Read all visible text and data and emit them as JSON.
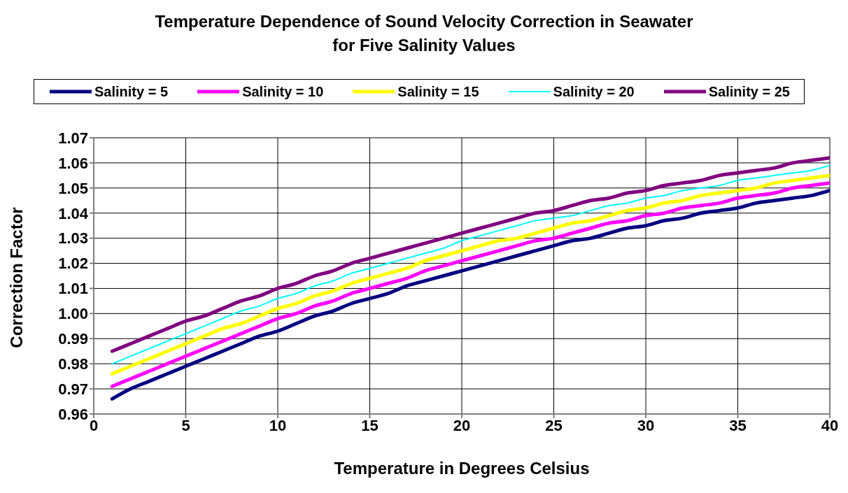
{
  "chart_data": {
    "type": "line",
    "title": "Temperature Dependence of Sound Velocity Correction in Seawater\nfor Five Salinity Values",
    "xlabel": "Temperature in Degrees Celsius",
    "ylabel": "Correction Factor",
    "x": [
      1,
      2,
      3,
      4,
      5,
      6,
      7,
      8,
      9,
      10,
      11,
      12,
      13,
      14,
      15,
      16,
      17,
      18,
      19,
      20,
      21,
      22,
      23,
      24,
      25,
      26,
      27,
      28,
      29,
      30,
      31,
      32,
      33,
      34,
      35,
      36,
      37,
      38,
      39,
      40
    ],
    "xlim": [
      0,
      40
    ],
    "xticks": [
      0,
      5,
      10,
      15,
      20,
      25,
      30,
      35,
      40
    ],
    "ylim": [
      0.96,
      1.07
    ],
    "yticks": [
      {
        "value": 0.96,
        "label": "0.96"
      },
      {
        "value": 0.97,
        "label": "0.97"
      },
      {
        "value": 0.98,
        "label": "0.98"
      },
      {
        "value": 0.99,
        "label": "0.99"
      },
      {
        "value": 1.0,
        "label": "1.00"
      },
      {
        "value": 1.01,
        "label": "1.01"
      },
      {
        "value": 1.02,
        "label": "1.02"
      },
      {
        "value": 1.03,
        "label": "1.03"
      },
      {
        "value": 1.04,
        "label": "1.04"
      },
      {
        "value": 1.05,
        "label": "1.05"
      },
      {
        "value": 1.06,
        "label": "1.06"
      },
      {
        "value": 1.07,
        "label": "1.07"
      }
    ],
    "grid": true,
    "legend": "top",
    "marker": "none",
    "line_style": "solid",
    "series": [
      {
        "name": "Salinity = 5",
        "color": "#000080",
        "values": [
          0.966,
          0.97,
          0.973,
          0.976,
          0.979,
          0.982,
          0.985,
          0.988,
          0.991,
          0.993,
          0.996,
          0.999,
          1.001,
          1.004,
          1.006,
          1.008,
          1.011,
          1.013,
          1.015,
          1.017,
          1.019,
          1.021,
          1.023,
          1.025,
          1.027,
          1.029,
          1.03,
          1.032,
          1.034,
          1.035,
          1.037,
          1.038,
          1.04,
          1.041,
          1.042,
          1.044,
          1.045,
          1.046,
          1.047,
          1.049
        ]
      },
      {
        "name": "Salinity = 10",
        "color": "#ff00ff",
        "values": [
          0.971,
          0.974,
          0.977,
          0.98,
          0.983,
          0.986,
          0.989,
          0.992,
          0.995,
          0.998,
          1.0,
          1.003,
          1.005,
          1.008,
          1.01,
          1.012,
          1.014,
          1.017,
          1.019,
          1.021,
          1.023,
          1.025,
          1.027,
          1.029,
          1.03,
          1.032,
          1.034,
          1.036,
          1.037,
          1.039,
          1.04,
          1.042,
          1.043,
          1.044,
          1.046,
          1.047,
          1.048,
          1.05,
          1.051,
          1.052
        ]
      },
      {
        "name": "Salinity = 15",
        "color": "#ffff00",
        "values": [
          0.976,
          0.979,
          0.982,
          0.985,
          0.988,
          0.991,
          0.994,
          0.996,
          0.999,
          1.002,
          1.004,
          1.007,
          1.009,
          1.012,
          1.014,
          1.016,
          1.018,
          1.021,
          1.023,
          1.025,
          1.027,
          1.029,
          1.03,
          1.032,
          1.034,
          1.036,
          1.037,
          1.039,
          1.041,
          1.042,
          1.044,
          1.045,
          1.047,
          1.048,
          1.049,
          1.05,
          1.052,
          1.053,
          1.054,
          1.055
        ]
      },
      {
        "name": "Salinity = 20",
        "color": "#00ffff",
        "values": [
          0.98,
          0.983,
          0.986,
          0.989,
          0.992,
          0.995,
          0.998,
          1.001,
          1.003,
          1.006,
          1.008,
          1.011,
          1.013,
          1.016,
          1.018,
          1.02,
          1.022,
          1.024,
          1.026,
          1.029,
          1.031,
          1.033,
          1.035,
          1.037,
          1.038,
          1.039,
          1.041,
          1.043,
          1.044,
          1.046,
          1.047,
          1.049,
          1.05,
          1.051,
          1.053,
          1.054,
          1.055,
          1.056,
          1.057,
          1.059
        ]
      },
      {
        "name": "Salinity = 25",
        "color": "#800080",
        "values": [
          0.985,
          0.988,
          0.991,
          0.994,
          0.997,
          0.999,
          1.002,
          1.005,
          1.007,
          1.01,
          1.012,
          1.015,
          1.017,
          1.02,
          1.022,
          1.024,
          1.026,
          1.028,
          1.03,
          1.032,
          1.034,
          1.036,
          1.038,
          1.04,
          1.041,
          1.043,
          1.045,
          1.046,
          1.048,
          1.049,
          1.051,
          1.052,
          1.053,
          1.055,
          1.056,
          1.057,
          1.058,
          1.06,
          1.061,
          1.062
        ]
      }
    ]
  }
}
